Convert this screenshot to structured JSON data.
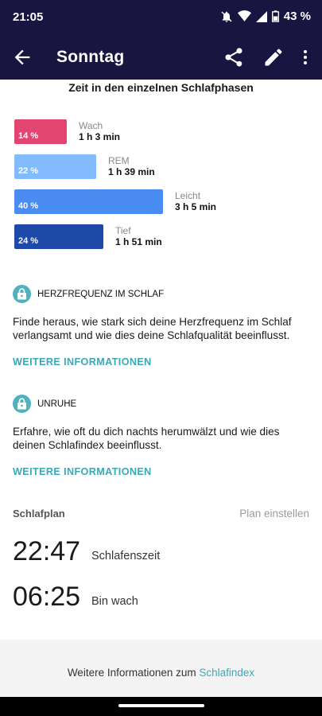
{
  "status_bar": {
    "time": "21:05",
    "battery": "43 %",
    "icons": [
      "mute-bell-icon",
      "wifi-icon",
      "signal-icon",
      "battery-icon"
    ]
  },
  "app_bar": {
    "title": "Sonntag",
    "icons": [
      "back-arrow-icon",
      "share-icon",
      "edit-icon",
      "more-vert-icon"
    ]
  },
  "sleep_phases": {
    "title": "Zeit in den einzelnen Schlafphasen",
    "items": [
      {
        "name": "Wach",
        "duration": "1 h 3 min",
        "percent": "14 %",
        "fraction": 0.14,
        "color": "#e2456f"
      },
      {
        "name": "REM",
        "duration": "1 h 39 min",
        "percent": "22 %",
        "fraction": 0.22,
        "color": "#82bcff"
      },
      {
        "name": "Leicht",
        "duration": "3 h 5 min",
        "percent": "40 %",
        "fraction": 0.4,
        "color": "#4b8cf3"
      },
      {
        "name": "Tief",
        "duration": "1 h 51 min",
        "percent": "24 %",
        "fraction": 0.24,
        "color": "#1f49a8"
      }
    ]
  },
  "features": [
    {
      "icon": "lock-icon",
      "heading": "HERZFREQUENZ IM SCHLAF",
      "description": "Finde heraus, wie stark sich deine Herzfrequenz im Schlaf verlangsamt und wie dies deine Schlafqualität beeinflusst.",
      "link": "WEITERE INFORMATIONEN"
    },
    {
      "icon": "lock-icon",
      "heading": "UNRUHE",
      "description": "Erfahre, wie oft du dich nachts herumwälzt und wie dies deinen Schlafindex beeinflusst.",
      "link": "WEITERE INFORMATIONEN"
    }
  ],
  "schedule": {
    "heading": "Schlafplan",
    "action": "Plan einstellen",
    "bedtime": {
      "time": "22:47",
      "label": "Schlafenszeit"
    },
    "wake": {
      "time": "06:25",
      "label": "Bin wach"
    }
  },
  "footer": {
    "text": "Weitere Informationen zum ",
    "link": "Schlafindex"
  },
  "colors": {
    "header": "#181540",
    "accent": "#3aa8b6"
  }
}
